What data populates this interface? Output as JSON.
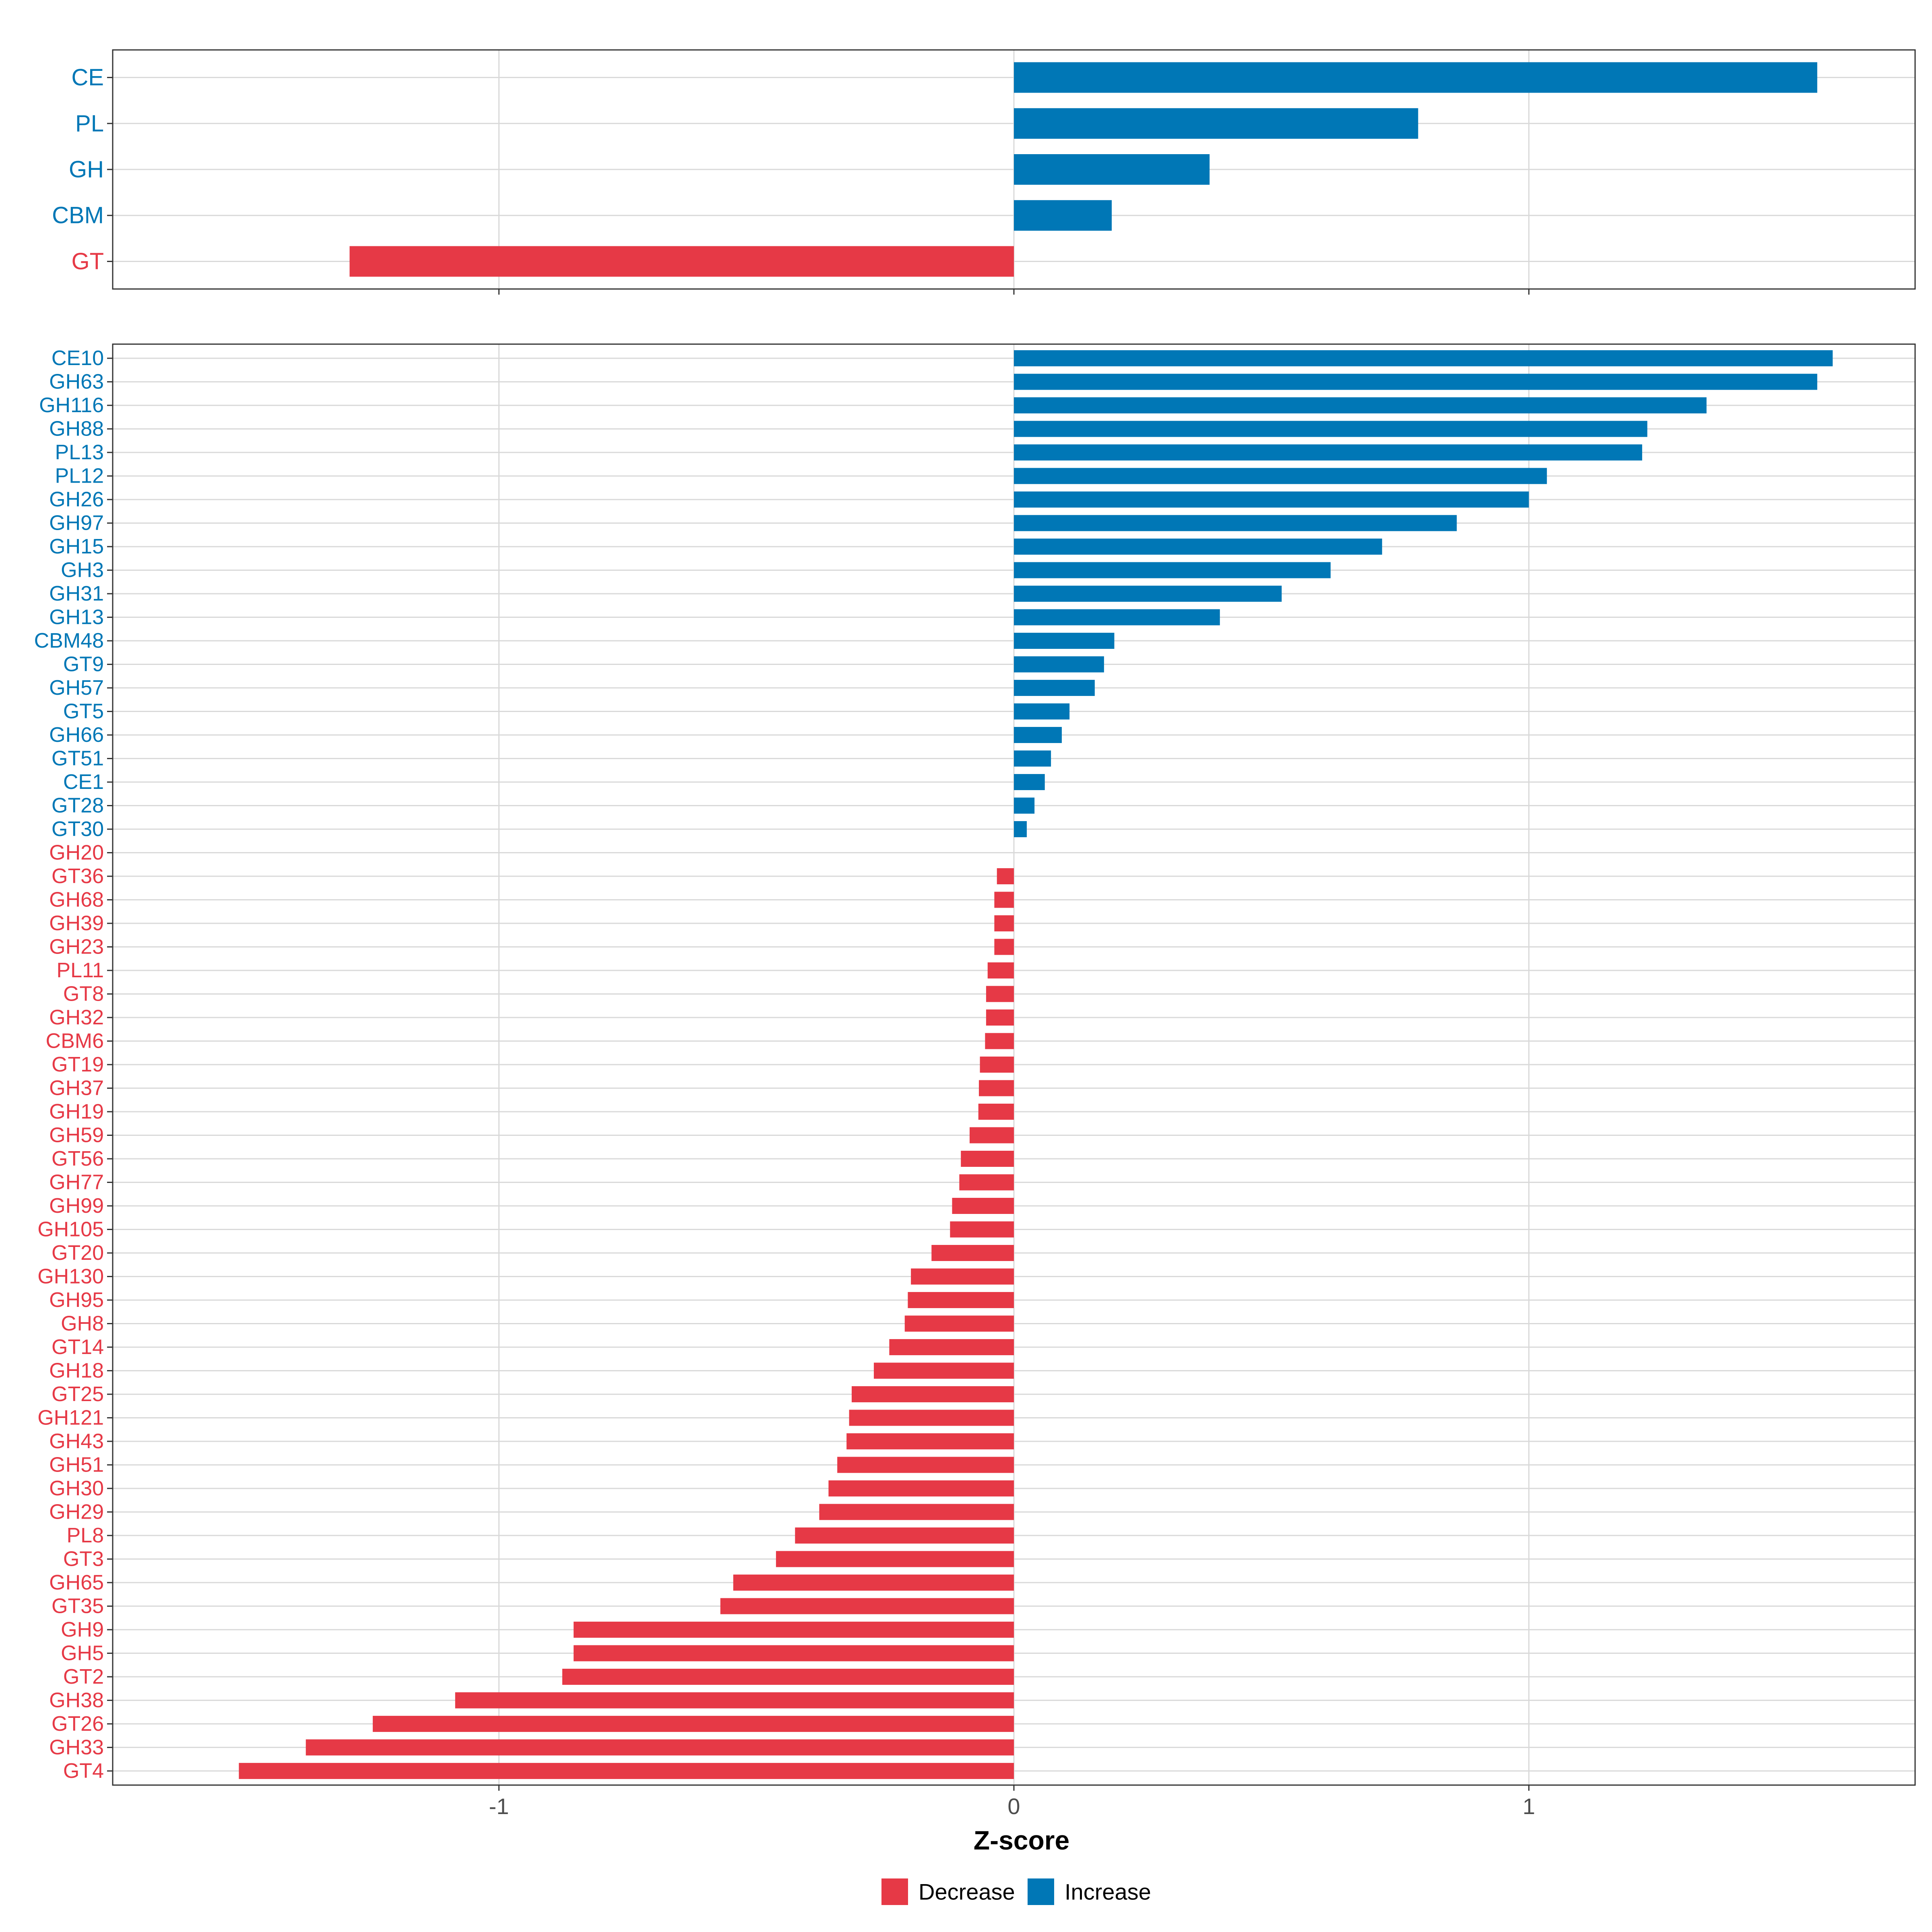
{
  "colors": {
    "decrease": "#E63946",
    "increase": "#0077B6",
    "grid": "#D9D9D9",
    "panel_border": "#333333",
    "axis_text": "#4D4D4D"
  },
  "chart_data": [
    {
      "type": "bar",
      "orientation": "horizontal",
      "panel": "family",
      "categories": [
        "CE",
        "PL",
        "GH",
        "CBM",
        "GT"
      ],
      "values": [
        1.56,
        0.785,
        0.38,
        0.19,
        -1.29
      ],
      "direction": [
        "Increase",
        "Increase",
        "Increase",
        "Increase",
        "Decrease"
      ],
      "xlim": [
        -1.75,
        1.75
      ],
      "xticks": [
        -1,
        0,
        1
      ],
      "grid": true
    },
    {
      "type": "bar",
      "orientation": "horizontal",
      "panel": "subfamily",
      "categories": [
        "CE10",
        "GH63",
        "GH116",
        "GH88",
        "PL13",
        "PL12",
        "GH26",
        "GH97",
        "GH15",
        "GH3",
        "GH31",
        "GH13",
        "CBM48",
        "GT9",
        "GH57",
        "GT5",
        "GH66",
        "GT51",
        "CE1",
        "GT28",
        "GT30",
        "GH20",
        "GT36",
        "GH68",
        "GH39",
        "GH23",
        "PL11",
        "GT8",
        "GH32",
        "CBM6",
        "GT19",
        "GH37",
        "GH19",
        "GH59",
        "GT56",
        "GH77",
        "GH99",
        "GH105",
        "GT20",
        "GH130",
        "GH95",
        "GH8",
        "GT14",
        "GH18",
        "GT25",
        "GH121",
        "GH43",
        "GH51",
        "GH30",
        "GH29",
        "PL8",
        "GT3",
        "GH65",
        "GT35",
        "GH9",
        "GH5",
        "GT2",
        "GH38",
        "GT26",
        "GH33",
        "GT4"
      ],
      "values": [
        1.59,
        1.56,
        1.345,
        1.23,
        1.22,
        1.035,
        1.0,
        0.86,
        0.715,
        0.615,
        0.52,
        0.4,
        0.195,
        0.175,
        0.157,
        0.108,
        0.093,
        0.072,
        0.06,
        0.04,
        0.025,
        0.0,
        -0.033,
        -0.038,
        -0.038,
        -0.038,
        -0.051,
        -0.054,
        -0.054,
        -0.056,
        -0.066,
        -0.068,
        -0.069,
        -0.086,
        -0.103,
        -0.106,
        -0.12,
        -0.124,
        -0.16,
        -0.2,
        -0.206,
        -0.212,
        -0.242,
        -0.272,
        -0.315,
        -0.32,
        -0.325,
        -0.343,
        -0.36,
        -0.378,
        -0.425,
        -0.462,
        -0.545,
        -0.57,
        -0.855,
        -0.855,
        -0.877,
        -1.085,
        -1.245,
        -1.375,
        -1.505
      ],
      "direction": [
        "Increase",
        "Increase",
        "Increase",
        "Increase",
        "Increase",
        "Increase",
        "Increase",
        "Increase",
        "Increase",
        "Increase",
        "Increase",
        "Increase",
        "Increase",
        "Increase",
        "Increase",
        "Increase",
        "Increase",
        "Increase",
        "Increase",
        "Increase",
        "Increase",
        "Decrease",
        "Decrease",
        "Decrease",
        "Decrease",
        "Decrease",
        "Decrease",
        "Decrease",
        "Decrease",
        "Decrease",
        "Decrease",
        "Decrease",
        "Decrease",
        "Decrease",
        "Decrease",
        "Decrease",
        "Decrease",
        "Decrease",
        "Decrease",
        "Decrease",
        "Decrease",
        "Decrease",
        "Decrease",
        "Decrease",
        "Decrease",
        "Decrease",
        "Decrease",
        "Decrease",
        "Decrease",
        "Decrease",
        "Decrease",
        "Decrease",
        "Decrease",
        "Decrease",
        "Decrease",
        "Decrease",
        "Decrease",
        "Decrease",
        "Decrease",
        "Decrease",
        "Decrease"
      ],
      "xlim": [
        -1.75,
        1.75
      ],
      "xticks": [
        -1,
        0,
        1
      ],
      "xlabel": "Z-score",
      "grid": true
    }
  ],
  "legend": {
    "position": "bottom",
    "items": [
      {
        "label": "Decrease",
        "key": "decrease"
      },
      {
        "label": "Increase",
        "key": "increase"
      }
    ]
  }
}
